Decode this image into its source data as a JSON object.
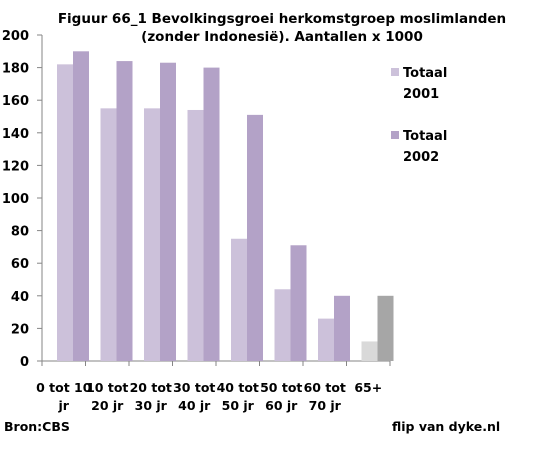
{
  "chart_data": {
    "type": "bar",
    "title": [
      "Figuur 66_1 Bevolkingsgroei herkomstgroep moslimlanden",
      "(zonder Indonesië). Aantallen x 1000"
    ],
    "categories": [
      [
        "0 tot 10",
        "jr"
      ],
      [
        "10 tot",
        "20 jr"
      ],
      [
        "20 tot",
        "30 jr"
      ],
      [
        "30 tot",
        "40 jr"
      ],
      [
        "40 tot",
        "50 jr"
      ],
      [
        "50 tot",
        "60 jr"
      ],
      [
        "60 tot",
        "70 jr"
      ],
      [
        "65+"
      ]
    ],
    "series": [
      {
        "name": [
          "Totaal",
          "2001"
        ],
        "color": "#ccc1da",
        "last_color": "#d9d9d9",
        "values": [
          182,
          155,
          155,
          154,
          75,
          44,
          26,
          12
        ]
      },
      {
        "name": [
          "Totaal",
          "2002"
        ],
        "color": "#b3a2c7",
        "last_color": "#a6a6a6",
        "values": [
          190,
          184,
          183,
          180,
          151,
          71,
          40,
          40
        ]
      }
    ],
    "ylim": [
      0,
      200
    ],
    "yticks": [
      0,
      20,
      40,
      60,
      80,
      100,
      120,
      140,
      160,
      180,
      200
    ],
    "grid": false,
    "legend": "right"
  },
  "footer": {
    "source": "Bron:CBS",
    "credit": "flip van dyke.nl"
  }
}
